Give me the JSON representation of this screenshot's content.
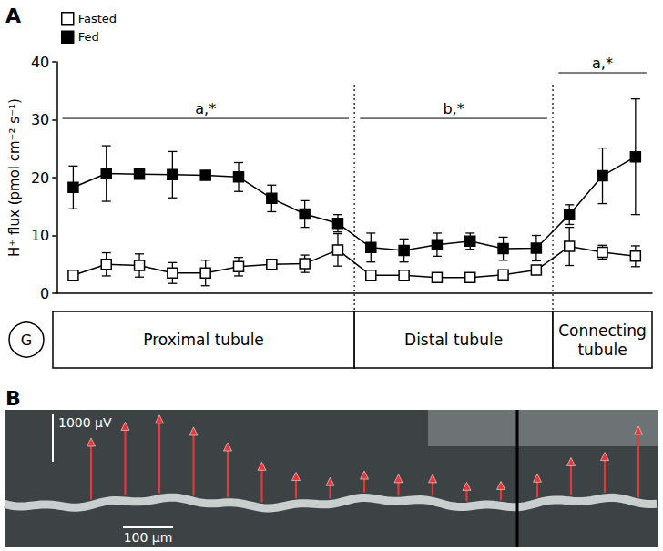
{
  "chart_data": {
    "type": "line",
    "panel_label": "A",
    "y_label": "H⁺ flux (pmol cm⁻² s⁻¹)",
    "categories": [
      null,
      null,
      null,
      null,
      null,
      null,
      null,
      null,
      null,
      null,
      null,
      null,
      null,
      null,
      null,
      null,
      null,
      null
    ],
    "ylim": [
      0,
      40
    ],
    "yticks": [
      0,
      10,
      20,
      30,
      40
    ],
    "grid": false,
    "legend": "top-left",
    "tick_labels": "y",
    "series": [
      {
        "name": "Fasted",
        "color": "#000000",
        "marker": "square-open",
        "values": [
          3.1,
          5.0,
          4.8,
          3.5,
          3.5,
          4.6,
          5.0,
          5.1,
          7.5,
          3.1,
          3.1,
          2.7,
          2.7,
          3.2,
          4.0,
          8.1,
          7.1,
          6.4
        ],
        "errors": [
          0.4,
          2.0,
          2.0,
          1.8,
          2.2,
          1.6,
          0.8,
          1.5,
          2.8,
          0.5,
          0.6,
          0.3,
          0.3,
          0.6,
          0.5,
          3.3,
          1.2,
          1.8
        ]
      },
      {
        "name": "Fed",
        "color": "#000000",
        "marker": "square",
        "values": [
          18.3,
          20.7,
          20.6,
          20.5,
          20.4,
          20.1,
          16.4,
          13.7,
          12.1,
          7.9,
          7.4,
          8.4,
          9.0,
          7.7,
          7.8,
          13.6,
          20.3,
          23.6
        ],
        "errors": [
          3.7,
          4.8,
          0.3,
          4.0,
          0.5,
          2.5,
          2.3,
          2.3,
          1.5,
          2.5,
          2.0,
          2.0,
          1.4,
          2.0,
          2.2,
          1.7,
          4.8,
          10.0
        ]
      }
    ],
    "origin_label": "G",
    "segments": [
      {
        "label": "Proximal tubule",
        "points": 9,
        "significance": "a,*"
      },
      {
        "label": "Distal tubule",
        "points": 6,
        "significance": "b,*"
      },
      {
        "label": "Connecting tubule",
        "points": 3,
        "significance": "a,*"
      }
    ]
  },
  "panel_b": {
    "type": "image",
    "panel_label": "B",
    "voltage_scale": {
      "value": 1000,
      "label": "1000 μV"
    },
    "length_scale": {
      "value": 100,
      "label": "100 μm"
    },
    "arrow_frames_uV": [
      [
        1300,
        1550,
        1650,
        1450,
        1150,
        850,
        550,
        450,
        450,
        450,
        450,
        400,
        400
      ],
      [
        500,
        800,
        850,
        1500
      ]
    ]
  }
}
